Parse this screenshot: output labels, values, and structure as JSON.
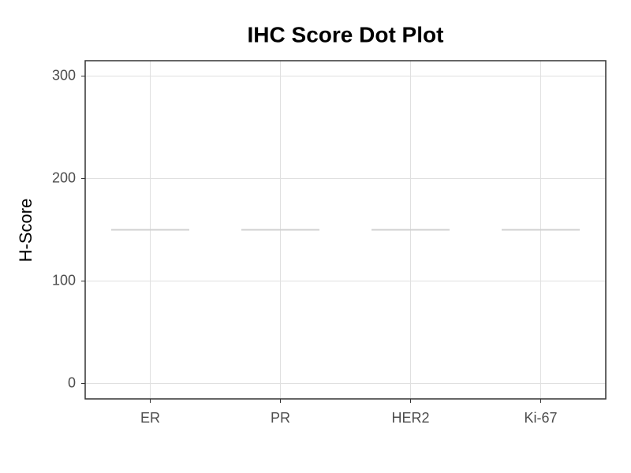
{
  "chart_data": {
    "type": "dot",
    "title": "IHC Score Dot Plot",
    "y_label": "H-Score",
    "categories": [
      "ER",
      "PR",
      "HER2",
      "Ki-67"
    ],
    "values": [
      150,
      150,
      150,
      150
    ],
    "color": "#d0d0d0",
    "ylim": [
      -15,
      315
    ],
    "yticks": [
      0,
      100,
      200,
      300
    ],
    "grid": true
  }
}
